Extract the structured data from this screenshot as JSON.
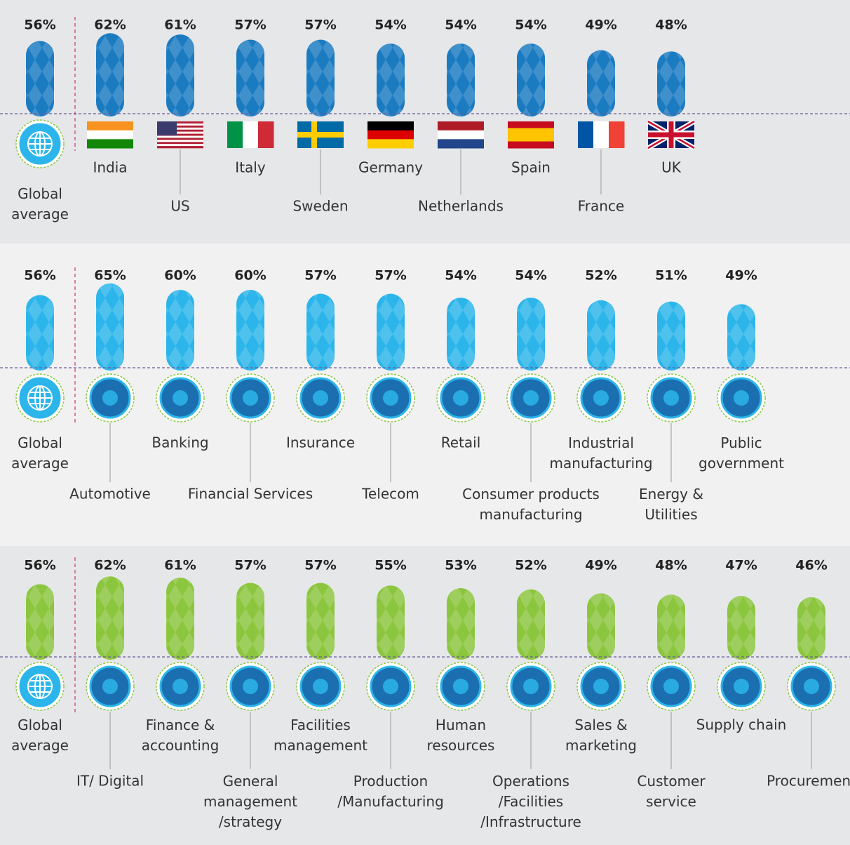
{
  "chart_data": [
    {
      "type": "bar",
      "color": "#1b7bc1",
      "ylim": [
        0,
        100
      ],
      "categories": [
        "Global\naverage",
        "India",
        "US",
        "Italy",
        "Sweden",
        "Germany",
        "Netherlands",
        "Spain",
        "France",
        "UK"
      ],
      "values": [
        56,
        62,
        61,
        57,
        57,
        54,
        54,
        54,
        49,
        48
      ],
      "value_labels": [
        "56%",
        "62%",
        "61%",
        "57%",
        "57%",
        "54%",
        "54%",
        "54%",
        "49%",
        "48%"
      ]
    },
    {
      "type": "bar",
      "color": "#2cb5ea",
      "ylim": [
        0,
        100
      ],
      "categories": [
        "Global\naverage",
        "Automotive",
        "Banking",
        "Financial Services",
        "Insurance",
        "Telecom",
        "Retail",
        "Consumer products\nmanufacturing",
        "Industrial\nmanufacturing",
        "Energy &\nUtilities",
        "Public\ngovernment"
      ],
      "values": [
        56,
        65,
        60,
        60,
        57,
        57,
        54,
        54,
        52,
        51,
        49
      ],
      "value_labels": [
        "56%",
        "65%",
        "60%",
        "60%",
        "57%",
        "57%",
        "54%",
        "54%",
        "52%",
        "51%",
        "49%"
      ]
    },
    {
      "type": "bar",
      "color": "#8cc63f",
      "ylim": [
        0,
        100
      ],
      "categories": [
        "Global\naverage",
        "IT/ Digital",
        "Finance &\naccounting",
        "General\nmanagement\n/strategy",
        "Facilities\nmanagement",
        "Production\n/Manufacturing",
        "Human\nresources",
        "Operations\n/Facilities\n/Infrastructure",
        "Sales &\nmarketing",
        "Customer\nservice",
        "Supply chain",
        "Procurement"
      ],
      "values": [
        56,
        62,
        61,
        57,
        57,
        55,
        53,
        52,
        49,
        48,
        47,
        46
      ],
      "value_labels": [
        "56%",
        "62%",
        "61%",
        "57%",
        "57%",
        "55%",
        "53%",
        "52%",
        "49%",
        "48%",
        "47%",
        "46%"
      ]
    }
  ]
}
